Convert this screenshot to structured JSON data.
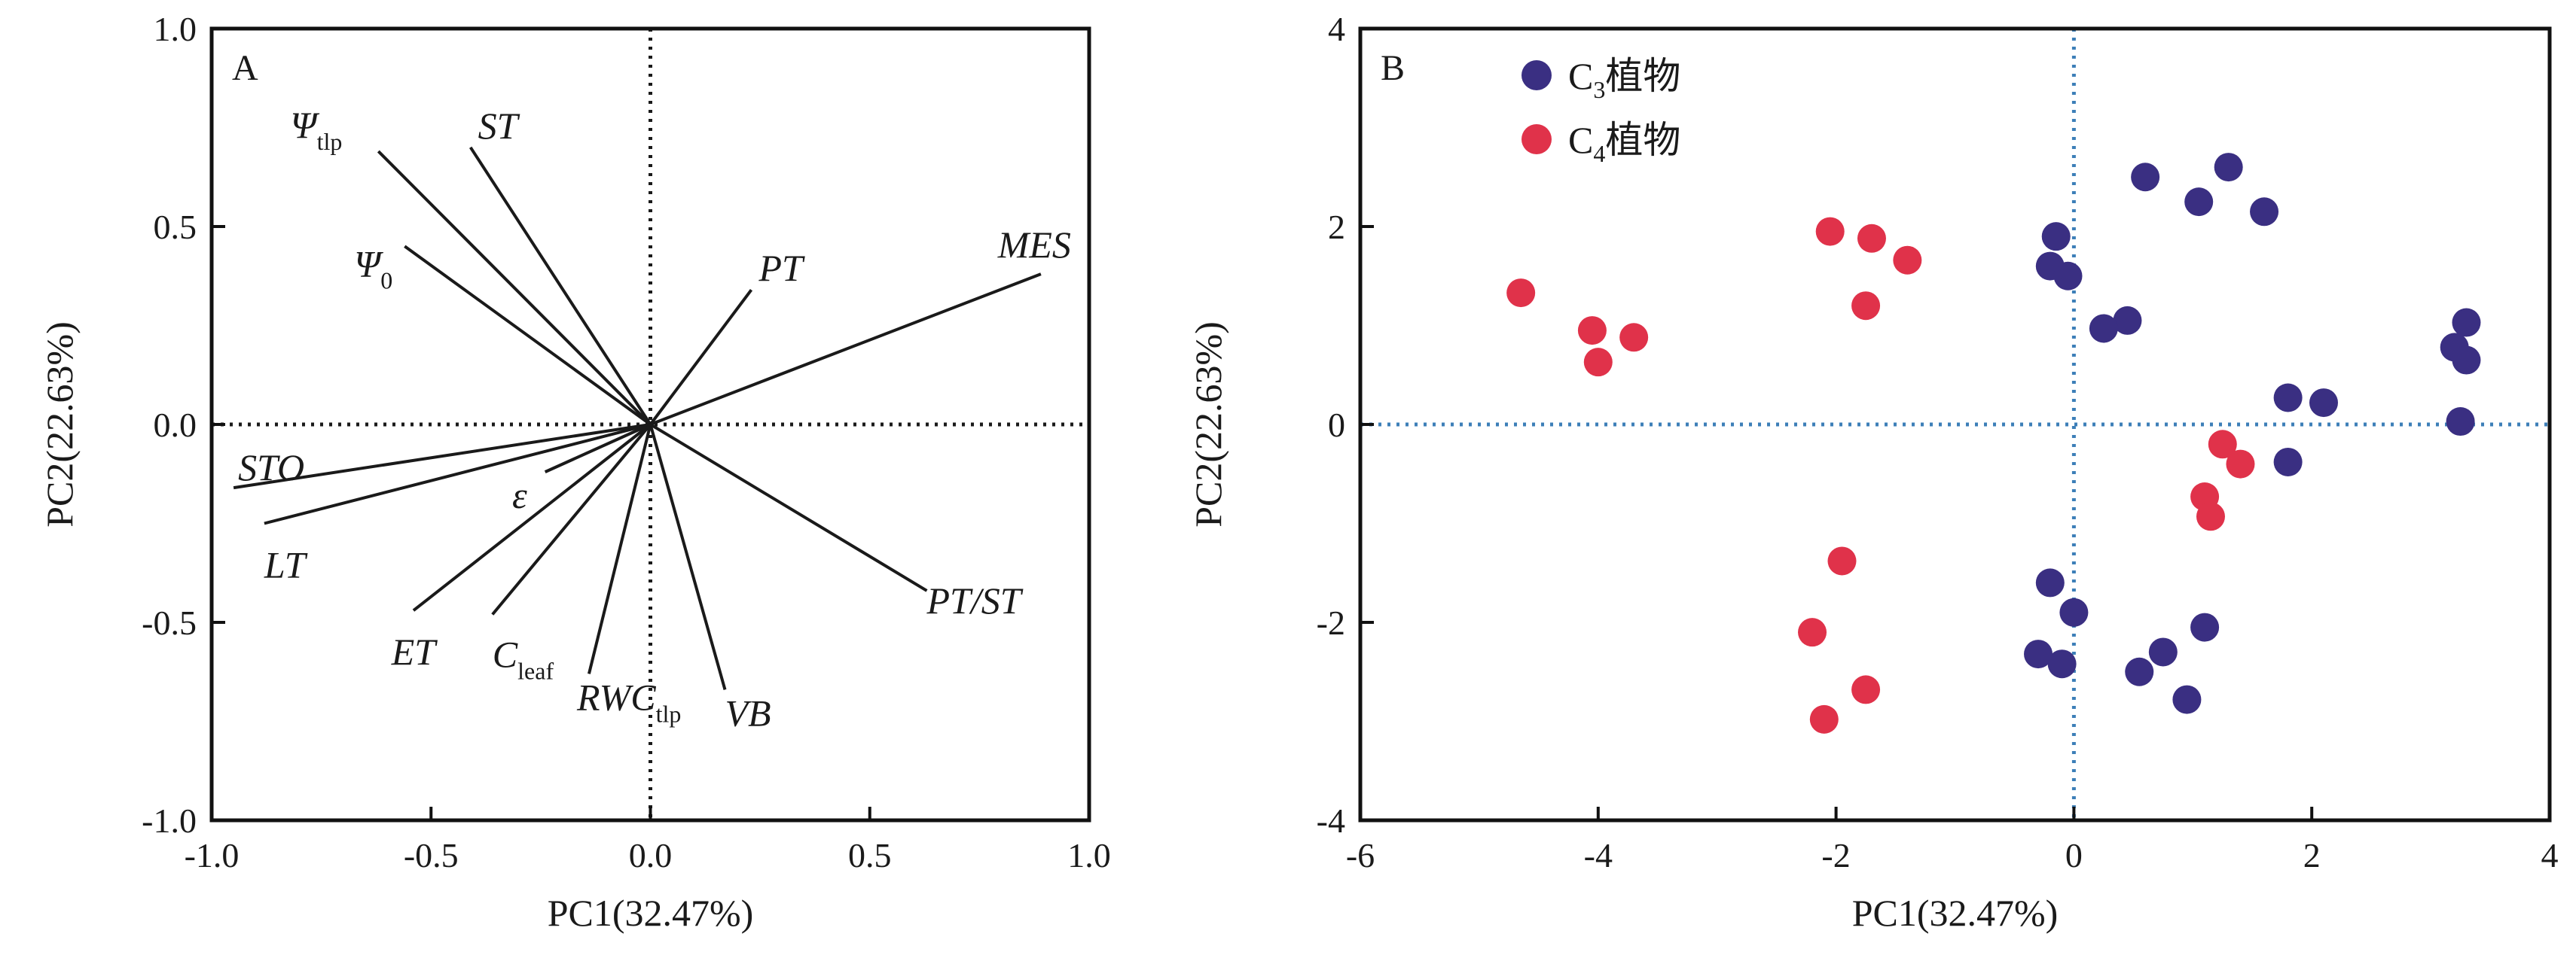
{
  "chart_data": [
    {
      "panel": "A",
      "type": "scatter",
      "mark": "loading-vectors",
      "xlabel": "PC1(32.47%)",
      "ylabel": "PC2(22.63%)",
      "xlim": [
        -1.0,
        1.0
      ],
      "ylim": [
        -1.0,
        1.0
      ],
      "xticks": [
        "-1.0",
        "-0.5",
        "0.0",
        "0.5",
        "1.0"
      ],
      "yticks": [
        "-1.0",
        "-0.5",
        "0.0",
        "0.5",
        "1.0"
      ],
      "reference_lines": "dotted lines at x=0 and y=0",
      "vectors": [
        {
          "label": "Ψ",
          "sub": "tlp",
          "x": -0.62,
          "y": 0.69
        },
        {
          "label": "ST",
          "sub": "",
          "x": -0.41,
          "y": 0.7
        },
        {
          "label": "Ψ",
          "sub": "0",
          "x": -0.56,
          "y": 0.45
        },
        {
          "label": "PT",
          "sub": "",
          "x": 0.23,
          "y": 0.34
        },
        {
          "label": "MES",
          "sub": "",
          "x": 0.89,
          "y": 0.38
        },
        {
          "label": "STO",
          "sub": "",
          "x": -0.95,
          "y": -0.16
        },
        {
          "label": "LT",
          "sub": "",
          "x": -0.88,
          "y": -0.25
        },
        {
          "label": "ε",
          "sub": "",
          "x": -0.24,
          "y": -0.12
        },
        {
          "label": "ET",
          "sub": "",
          "x": -0.54,
          "y": -0.47
        },
        {
          "label": "C",
          "sub": "leaf",
          "x": -0.36,
          "y": -0.48
        },
        {
          "label": "RWC",
          "sub": "tlp",
          "x": -0.14,
          "y": -0.63
        },
        {
          "label": "VB",
          "sub": "",
          "x": 0.17,
          "y": -0.67
        },
        {
          "label": "PT/ST",
          "sub": "",
          "x": 0.63,
          "y": -0.42
        }
      ]
    },
    {
      "panel": "B",
      "type": "scatter",
      "xlabel": "PC1(32.47%)",
      "ylabel": "PC2(22.63%)",
      "xlim": [
        -6,
        4
      ],
      "ylim": [
        -4,
        4
      ],
      "xticks": [
        "-6",
        "-4",
        "-2",
        "0",
        "2",
        "4"
      ],
      "yticks": [
        "-4",
        "-2",
        "0",
        "2",
        "4"
      ],
      "reference_lines": "dotted lines at x=0 and y=0",
      "legend_position": "top-left",
      "series": [
        {
          "name": "C",
          "sub": "3",
          "name_suffix": "植物",
          "color": "#3a2f82",
          "points": [
            [
              1.3,
              2.6
            ],
            [
              0.6,
              2.5
            ],
            [
              1.05,
              2.25
            ],
            [
              1.6,
              2.15
            ],
            [
              -0.15,
              1.9
            ],
            [
              -0.2,
              1.6
            ],
            [
              -0.05,
              1.5
            ],
            [
              0.45,
              1.05
            ],
            [
              0.25,
              0.97
            ],
            [
              3.3,
              1.03
            ],
            [
              3.2,
              0.78
            ],
            [
              3.3,
              0.65
            ],
            [
              1.8,
              0.27
            ],
            [
              2.1,
              0.22
            ],
            [
              3.25,
              0.03
            ],
            [
              1.8,
              -0.38
            ],
            [
              -0.2,
              -1.6
            ],
            [
              0.0,
              -1.9
            ],
            [
              1.1,
              -2.05
            ],
            [
              -0.3,
              -2.32
            ],
            [
              0.75,
              -2.3
            ],
            [
              -0.1,
              -2.42
            ],
            [
              0.55,
              -2.5
            ],
            [
              0.95,
              -2.78
            ]
          ]
        },
        {
          "name": "C",
          "sub": "4",
          "name_suffix": "植物",
          "color": "#e0324a",
          "points": [
            [
              -4.65,
              1.33
            ],
            [
              -4.05,
              0.95
            ],
            [
              -3.7,
              0.88
            ],
            [
              -4.0,
              0.63
            ],
            [
              -2.05,
              1.95
            ],
            [
              -1.7,
              1.88
            ],
            [
              -1.4,
              1.66
            ],
            [
              -1.75,
              1.2
            ],
            [
              1.25,
              -0.2
            ],
            [
              1.4,
              -0.4
            ],
            [
              1.1,
              -0.73
            ],
            [
              1.15,
              -0.93
            ],
            [
              -1.95,
              -1.38
            ],
            [
              -2.2,
              -2.1
            ],
            [
              -1.75,
              -2.68
            ],
            [
              -2.1,
              -2.98
            ]
          ]
        }
      ]
    }
  ],
  "panel_labels": [
    "A",
    "B"
  ]
}
